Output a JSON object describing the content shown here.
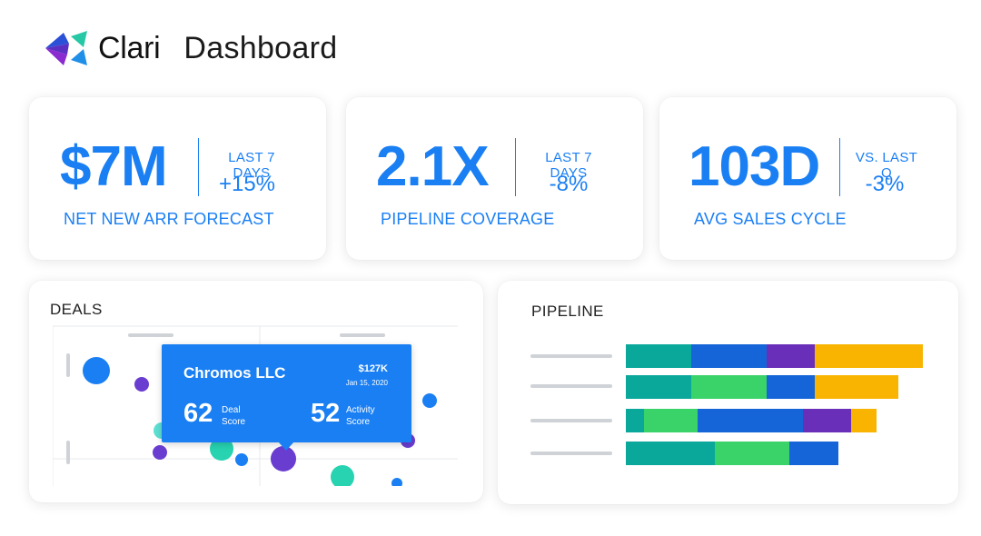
{
  "header": {
    "brand": "Clari",
    "title": "Dashboard",
    "logo_icon": "clari-logo-icon"
  },
  "kpis": [
    {
      "value": "$7M",
      "period": "LAST 7 DAYS",
      "delta": "+15%",
      "label": "NET NEW ARR FORECAST"
    },
    {
      "value": "2.1X",
      "period": "LAST 7 DAYS",
      "delta": "-8%",
      "label": "PIPELINE COVERAGE"
    },
    {
      "value": "103D",
      "period": "VS. LAST Q",
      "delta": "-3%",
      "label": "AVG SALES CYCLE"
    }
  ],
  "deals": {
    "title": "DEALS",
    "tooltip": {
      "company": "Chromos LLC",
      "amount": "$127K",
      "date": "Jan 15, 2020",
      "deal_score": "62",
      "deal_score_label_1": "Deal",
      "deal_score_label_2": "Score",
      "activity_score": "52",
      "activity_score_label_1": "Activity",
      "activity_score_label_2": "Score"
    },
    "bubble_colors": [
      "#1a7ff3",
      "#6a3dd1",
      "#27d3b0",
      "#5ee0d3"
    ]
  },
  "pipeline": {
    "title": "PIPELINE",
    "segment_colors": {
      "teal": "#0aa79b",
      "blue": "#1565d8",
      "purple": "#6a2fb8",
      "yellow": "#f8b400",
      "green": "#3ad36a"
    },
    "rows": [
      [
        {
          "c": "teal",
          "v": 72
        },
        {
          "c": "blue",
          "v": 83
        },
        {
          "c": "purple",
          "v": 53
        },
        {
          "c": "yellow",
          "v": 119
        }
      ],
      [
        {
          "c": "teal",
          "v": 72
        },
        {
          "c": "green",
          "v": 83
        },
        {
          "c": "blue",
          "v": 53
        },
        {
          "c": "yellow",
          "v": 92
        }
      ],
      [
        {
          "c": "teal",
          "v": 20
        },
        {
          "c": "green",
          "v": 59
        },
        {
          "c": "blue",
          "v": 116
        },
        {
          "c": "purple",
          "v": 53
        },
        {
          "c": "yellow",
          "v": 28
        }
      ],
      [
        {
          "c": "teal",
          "v": 98
        },
        {
          "c": "green",
          "v": 82
        },
        {
          "c": "blue",
          "v": 54
        }
      ]
    ]
  },
  "colors": {
    "accent": "#1a7ff3",
    "card_bg": "#ffffff"
  }
}
